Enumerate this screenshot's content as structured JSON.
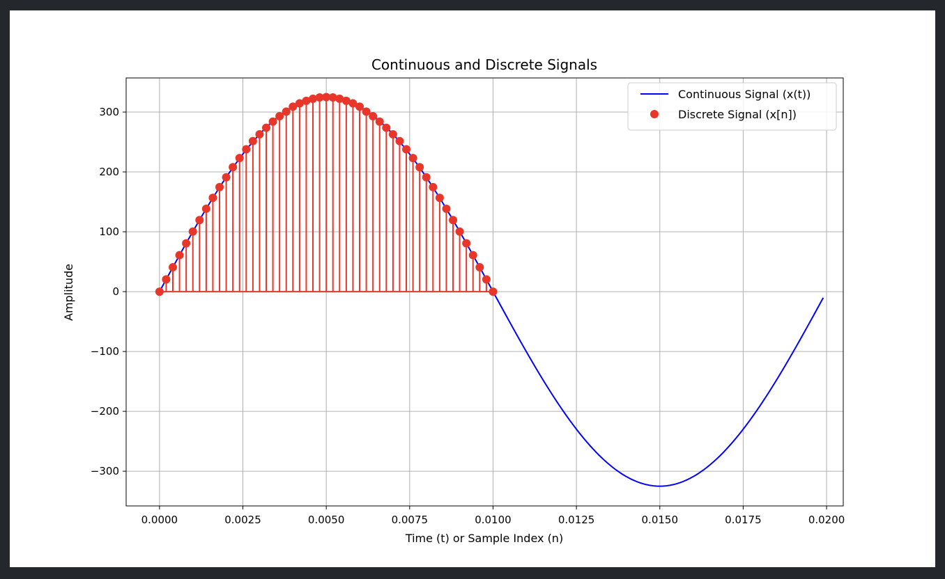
{
  "chart_data": {
    "type": "line",
    "title": "Continuous and Discrete Signals",
    "xlabel": "Time (t) or Sample Index (n)",
    "ylabel": "Amplitude",
    "xlim": [
      -0.001,
      0.0205
    ],
    "ylim": [
      -358,
      357
    ],
    "xticks": [
      0.0,
      0.0025,
      0.005,
      0.0075,
      0.01,
      0.0125,
      0.015,
      0.0175,
      0.02
    ],
    "xtick_labels": [
      "0.0000",
      "0.0025",
      "0.0050",
      "0.0075",
      "0.0100",
      "0.0125",
      "0.0150",
      "0.0175",
      "0.0200"
    ],
    "yticks": [
      -300,
      -200,
      -100,
      0,
      100,
      200,
      300
    ],
    "ytick_labels": [
      "−300",
      "−200",
      "−100",
      "0",
      "100",
      "200",
      "300"
    ],
    "grid": true,
    "legend_position": "top-right",
    "series": [
      {
        "name": "Continuous Signal (x(t))",
        "style": "line",
        "color": "#0000ff",
        "amplitude": 325,
        "frequency_hz": 50,
        "t_start": 0.0,
        "t_end": 0.0199,
        "t_step": 0.0001
      },
      {
        "name": "Discrete Signal (x[n])",
        "style": "stem",
        "color": "#e8372a",
        "x": [
          0.0,
          0.0002,
          0.0004,
          0.0006,
          0.0008,
          0.001,
          0.0012,
          0.0014,
          0.0016,
          0.0018,
          0.002,
          0.0022,
          0.0024,
          0.0026,
          0.0028,
          0.003,
          0.0032,
          0.0034,
          0.0036,
          0.0038,
          0.004,
          0.0042,
          0.0044,
          0.0046,
          0.0048,
          0.005,
          0.0052,
          0.0054,
          0.0056,
          0.0058,
          0.006,
          0.0062,
          0.0064,
          0.0066,
          0.0068,
          0.007,
          0.0072,
          0.0074,
          0.0076,
          0.0078,
          0.008,
          0.0082,
          0.0084,
          0.0086,
          0.0088,
          0.009,
          0.0092,
          0.0094,
          0.0096,
          0.0098,
          0.01
        ],
        "y": [
          0.0,
          20.4,
          40.7,
          60.9,
          80.8,
          100.4,
          119.6,
          138.5,
          156.8,
          174.6,
          191.0,
          207.9,
          223.2,
          237.8,
          251.5,
          262.9,
          273.8,
          284.0,
          293.0,
          300.8,
          309.1,
          314.5,
          318.8,
          322.2,
          324.4,
          325.0,
          324.4,
          322.2,
          318.8,
          314.5,
          309.1,
          300.8,
          293.0,
          284.0,
          273.8,
          262.9,
          251.5,
          237.8,
          223.2,
          207.9,
          191.0,
          174.6,
          156.8,
          138.5,
          119.6,
          100.4,
          80.8,
          60.9,
          40.7,
          20.4,
          0.0
        ]
      }
    ]
  }
}
